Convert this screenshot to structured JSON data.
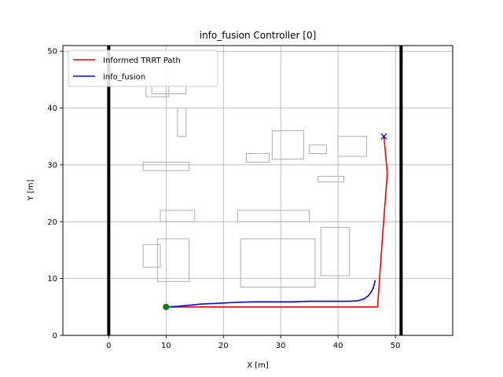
{
  "chart_data": {
    "type": "line",
    "title": "info_fusion Controller [0]",
    "xlabel": "X [m]",
    "ylabel": "Y [m]",
    "xlim": [
      -8,
      60
    ],
    "ylim": [
      0,
      51
    ],
    "xticks": [
      0,
      10,
      20,
      30,
      40,
      50
    ],
    "yticks": [
      0,
      10,
      20,
      30,
      40,
      50
    ],
    "grid": true,
    "legend_position": "top-left",
    "walls": [
      {
        "x": [
          0,
          0
        ],
        "y": [
          0,
          51
        ]
      },
      {
        "x": [
          51,
          51
        ],
        "y": [
          0,
          51
        ]
      }
    ],
    "series": [
      {
        "name": "Informed TRRT Path",
        "color": "#ff0000",
        "x": [
          10,
          46.9,
          47.8,
          48.6,
          48.0
        ],
        "y": [
          5.0,
          5.0,
          18.0,
          28.5,
          35.0
        ]
      },
      {
        "name": "info_fusion",
        "color": "#0000ff",
        "x": [
          10,
          12,
          14,
          16,
          18,
          20,
          22,
          25,
          28,
          30,
          32,
          35,
          38,
          40,
          42,
          43.5,
          44.5,
          45.2,
          45.8,
          46.2,
          46.5
        ],
        "y": [
          5.0,
          5.1,
          5.3,
          5.5,
          5.6,
          5.7,
          5.8,
          5.9,
          5.9,
          5.9,
          5.9,
          6.0,
          6.0,
          6.0,
          6.0,
          6.1,
          6.4,
          6.9,
          7.6,
          8.5,
          9.7
        ]
      }
    ],
    "markers": [
      {
        "name": "start",
        "x": 10,
        "y": 5,
        "color": "#008000",
        "shape": "circle"
      },
      {
        "name": "goal",
        "x": 48,
        "y": 35,
        "color": "#0000ff",
        "shape": "x"
      }
    ],
    "obstacles": [
      {
        "x": [
          6.5,
          10.5
        ],
        "y": [
          42,
          44.5
        ]
      },
      {
        "x": [
          7.5,
          13.5
        ],
        "y": [
          42.5,
          44
        ]
      },
      {
        "x": [
          12,
          13.5
        ],
        "y": [
          35,
          40
        ]
      },
      {
        "x": [
          6,
          14
        ],
        "y": [
          29,
          30.5
        ]
      },
      {
        "x": [
          28.5,
          34
        ],
        "y": [
          31,
          36
        ]
      },
      {
        "x": [
          24,
          28
        ],
        "y": [
          30.5,
          32
        ]
      },
      {
        "x": [
          40,
          45
        ],
        "y": [
          31.5,
          35
        ]
      },
      {
        "x": [
          35,
          38
        ],
        "y": [
          32,
          33.5
        ]
      },
      {
        "x": [
          22.5,
          35
        ],
        "y": [
          20,
          22
        ]
      },
      {
        "x": [
          23,
          36
        ],
        "y": [
          8.5,
          17
        ]
      },
      {
        "x": [
          37,
          42
        ],
        "y": [
          10.5,
          19
        ]
      },
      {
        "x": [
          8.5,
          14
        ],
        "y": [
          9.5,
          17
        ]
      },
      {
        "x": [
          9,
          15
        ],
        "y": [
          20,
          22
        ]
      },
      {
        "x": [
          6,
          9
        ],
        "y": [
          12,
          16
        ]
      },
      {
        "x": [
          36.5,
          41
        ],
        "y": [
          27,
          28
        ]
      }
    ]
  }
}
